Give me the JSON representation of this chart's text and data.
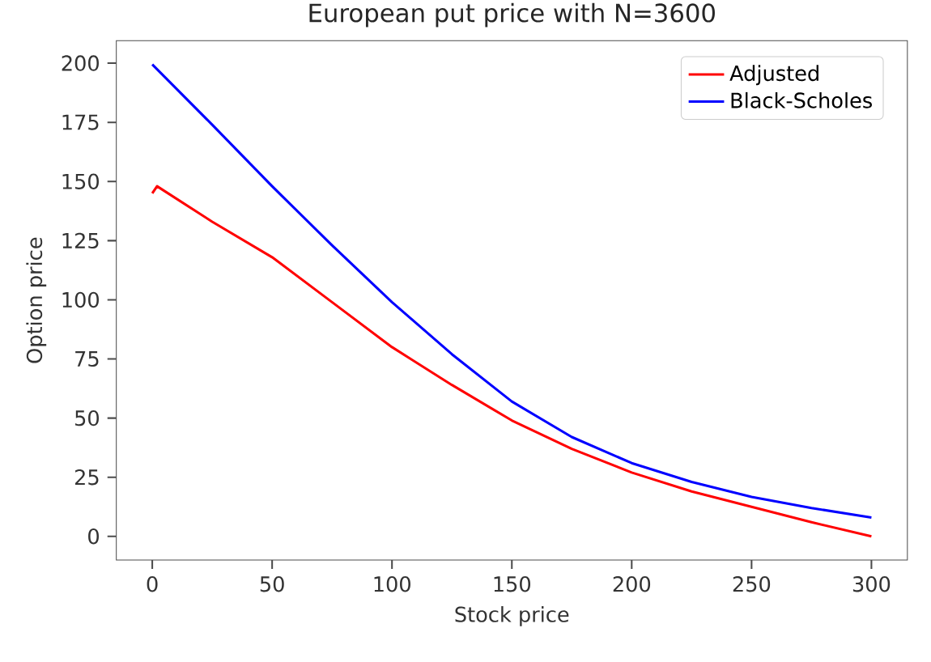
{
  "chart_data": {
    "type": "line",
    "title": "European put price with N=3600",
    "xlabel": "Stock price",
    "ylabel": "Option price",
    "xlim": [
      -15,
      315
    ],
    "ylim": [
      -10,
      209.5
    ],
    "xticks": [
      0,
      50,
      100,
      150,
      200,
      250,
      300
    ],
    "yticks": [
      0,
      25,
      50,
      75,
      100,
      125,
      150,
      175,
      200
    ],
    "series": [
      {
        "name": "Adjusted",
        "color": "#ff0000",
        "x": [
          0,
          2,
          25,
          50,
          75,
          100,
          125,
          150,
          175,
          200,
          225,
          250,
          275,
          300
        ],
        "values": [
          145,
          148,
          133,
          118,
          99,
          80,
          64,
          49,
          37,
          27,
          19,
          12.5,
          6,
          0
        ]
      },
      {
        "name": "Black-Scholes",
        "color": "#0000ff",
        "x": [
          0,
          25,
          50,
          75,
          100,
          125,
          150,
          175,
          200,
          225,
          250,
          275,
          300
        ],
        "values": [
          199.5,
          174,
          148,
          123,
          99,
          77,
          57,
          42,
          31,
          23,
          16.7,
          12,
          8
        ]
      }
    ],
    "legend": "top right",
    "grid": false,
    "marker": "none",
    "line_style": "solid"
  }
}
